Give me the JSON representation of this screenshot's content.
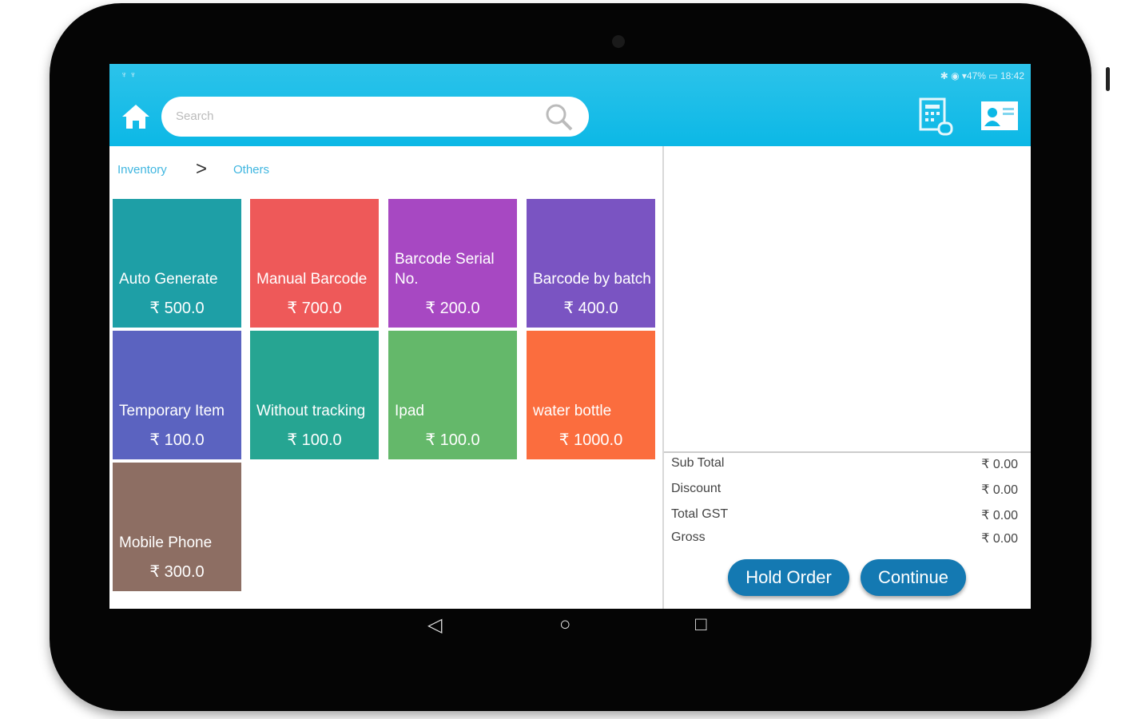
{
  "status": {
    "text": "✱ ◉ ▾47% ▭ 18:42",
    "left": "♆ ♆"
  },
  "search": {
    "placeholder": "Search"
  },
  "breadcrumb": {
    "items": [
      "Inventory",
      "Others"
    ],
    "separator": ">"
  },
  "tiles": [
    {
      "name": "Auto Generate",
      "price": "₹ 500.0",
      "color": "#1e9fa6"
    },
    {
      "name": "Manual Barcode",
      "price": "₹ 700.0",
      "color": "#ee5959"
    },
    {
      "name": "Barcode Serial No.",
      "price": "₹ 200.0",
      "color": "#a748c2"
    },
    {
      "name": "Barcode by batch",
      "price": "₹ 400.0",
      "color": "#7a54c2"
    },
    {
      "name": "Temporary Item",
      "price": "₹ 100.0",
      "color": "#5b63c0"
    },
    {
      "name": "Without tracking",
      "price": "₹ 100.0",
      "color": "#26a592"
    },
    {
      "name": "Ipad",
      "price": "₹ 100.0",
      "color": "#64b86a"
    },
    {
      "name": "water bottle",
      "price": "₹ 1000.0",
      "color": "#fb6d3e"
    },
    {
      "name": "Mobile Phone",
      "price": "₹ 300.0",
      "color": "#8d6e63"
    }
  ],
  "totals": [
    {
      "label": "Sub Total",
      "value": "₹ 0.00"
    },
    {
      "label": "Discount",
      "value": "₹ 0.00"
    },
    {
      "label": "Total GST",
      "value": "₹ 0.00"
    },
    {
      "label": "Gross",
      "value": "₹ 0.00"
    }
  ],
  "buttons": {
    "hold": "Hold Order",
    "continue": "Continue"
  },
  "nav": {
    "back": "◁",
    "home": "○",
    "recents": "□"
  }
}
